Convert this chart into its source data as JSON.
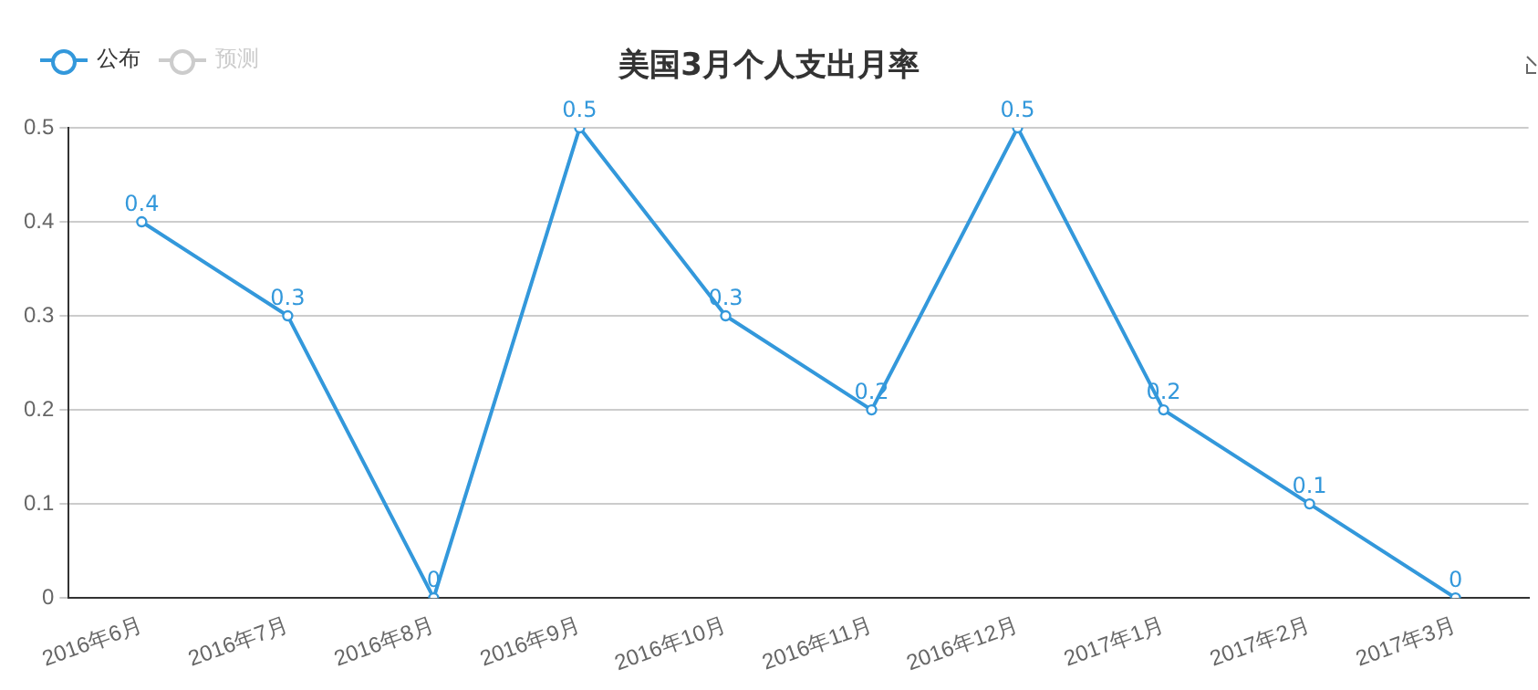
{
  "chart_data": {
    "type": "line",
    "title": "美国3月个人支出月率",
    "categories": [
      "2016年6月",
      "2016年7月",
      "2016年8月",
      "2016年9月",
      "2016年10月",
      "2016年11月",
      "2016年12月",
      "2017年1月",
      "2017年2月",
      "2017年3月"
    ],
    "series": [
      {
        "name": "公布",
        "color": "#3398db",
        "values": [
          0.4,
          0.3,
          0,
          0.5,
          0.3,
          0.2,
          0.5,
          0.2,
          0.1,
          0
        ]
      },
      {
        "name": "预测",
        "color": "#cccccc",
        "values": [
          null,
          null,
          null,
          null,
          null,
          null,
          null,
          null,
          null,
          null
        ]
      }
    ],
    "ylim": [
      0,
      0.5
    ],
    "yticks": [
      0,
      0.1,
      0.2,
      0.3,
      0.4,
      0.5
    ],
    "grid": "y",
    "legend": "top left",
    "marker": "circle",
    "data_labels": true
  }
}
